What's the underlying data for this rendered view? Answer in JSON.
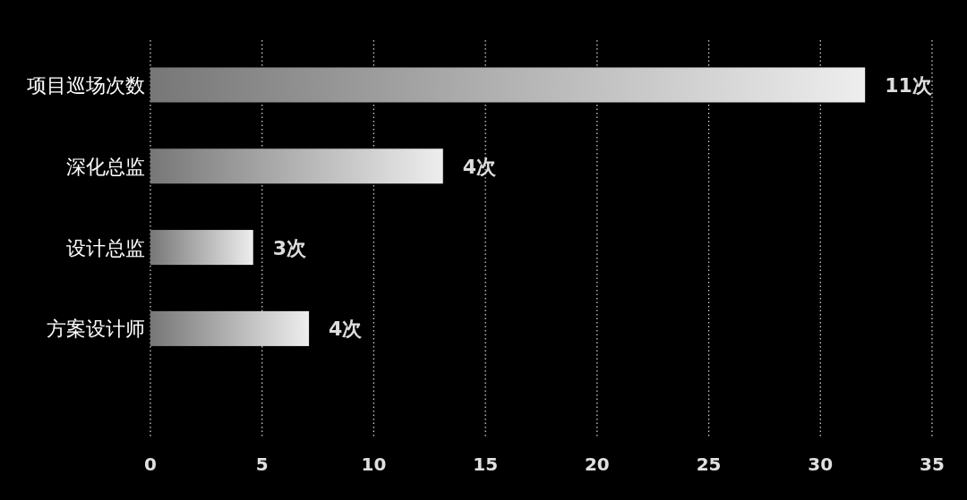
{
  "chart_data": {
    "type": "bar",
    "orientation": "horizontal",
    "categories": [
      "项目巡场次数",
      "深化总监",
      "设计总监",
      "方案设计师"
    ],
    "series": [
      {
        "color": "#eeeeee",
        "values": [
          32,
          13.1,
          4.6,
          7.1
        ]
      }
    ],
    "annotations": [
      {
        "text": "11次",
        "x": 32,
        "y": "项目巡场次数"
      },
      {
        "text": "4次",
        "x": 13.1,
        "y": "深化总监"
      },
      {
        "text": "3次",
        "x": 4.6,
        "y": "设计总监"
      },
      {
        "text": "4次",
        "x": 7.1,
        "y": "方案设计师"
      }
    ],
    "xlim": [
      0,
      35
    ],
    "xticks": [
      0,
      5,
      10,
      15,
      20,
      25,
      30,
      35
    ],
    "grid": "x"
  }
}
